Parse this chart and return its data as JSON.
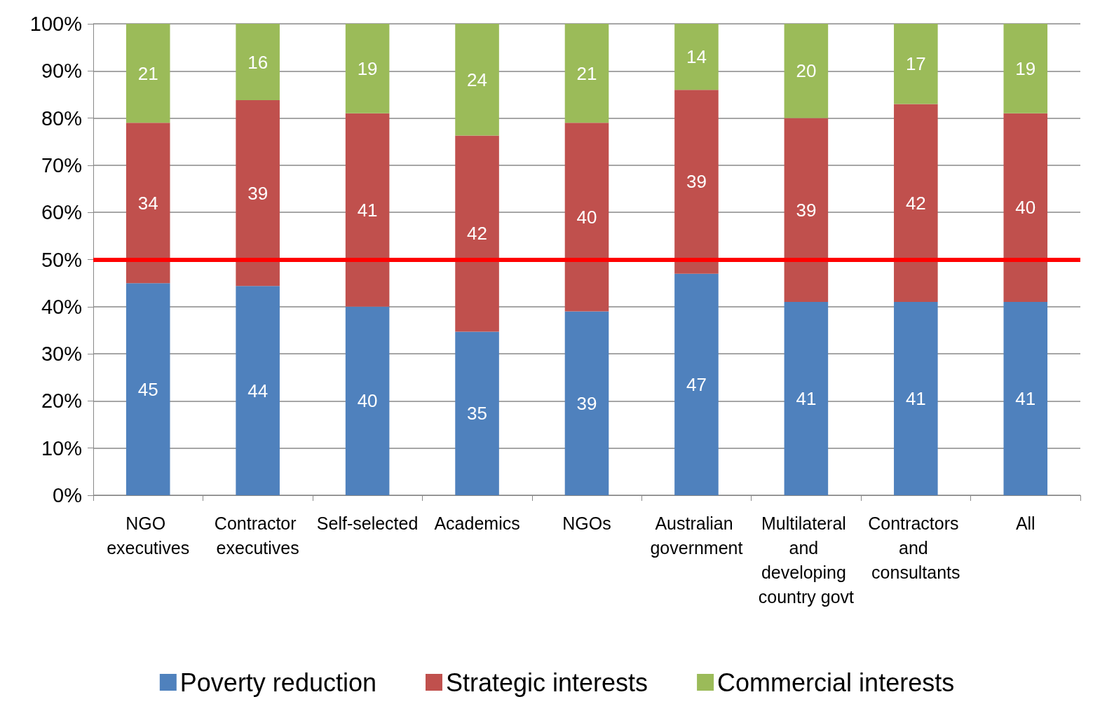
{
  "chart_data": {
    "type": "bar",
    "stacked": true,
    "categories": [
      "NGO executives",
      "Contractor executives",
      "Self-selected",
      "Academics",
      "NGOs",
      "Australian government",
      "Multilateral and developing country govt",
      "Contractors and consultants",
      "All"
    ],
    "series": [
      {
        "name": "Poverty reduction",
        "color": "#4f81bd",
        "values": [
          45,
          44.4,
          40,
          34.7,
          39,
          47,
          41,
          41,
          41
        ],
        "value_labels": [
          "45",
          "44",
          "40",
          "35",
          "39",
          "47",
          "41",
          "41",
          "41"
        ]
      },
      {
        "name": "Strategic interests",
        "color": "#c0504d",
        "values": [
          34,
          39.4,
          41,
          41.6,
          40,
          39,
          39,
          42,
          40
        ],
        "value_labels": [
          "34",
          "39",
          "41",
          "42",
          "40",
          "39",
          "39",
          "42",
          "40"
        ]
      },
      {
        "name": "Commercial interests",
        "color": "#9bbb59",
        "values": [
          21,
          16.2,
          19,
          23.7,
          21,
          14,
          20,
          17,
          19
        ],
        "value_labels": [
          "21",
          "16",
          "19",
          "24",
          "21",
          "14",
          "20",
          "17",
          "19"
        ]
      }
    ],
    "ylim": [
      0,
      100
    ],
    "yticks": [
      {
        "value": 0,
        "label": "0%"
      },
      {
        "value": 10,
        "label": "10%"
      },
      {
        "value": 20,
        "label": "20%"
      },
      {
        "value": 30,
        "label": "30%"
      },
      {
        "value": 40,
        "label": "40%"
      },
      {
        "value": 50,
        "label": "50%"
      },
      {
        "value": 60,
        "label": "60%"
      },
      {
        "value": 70,
        "label": "70%"
      },
      {
        "value": 80,
        "label": "80%"
      },
      {
        "value": 90,
        "label": "90%"
      },
      {
        "value": 100,
        "label": "100%"
      }
    ],
    "ref_lines": [
      {
        "axis": "y",
        "value": 50,
        "color": "#ff0000"
      }
    ],
    "grid": "y",
    "legend": "bottom"
  }
}
